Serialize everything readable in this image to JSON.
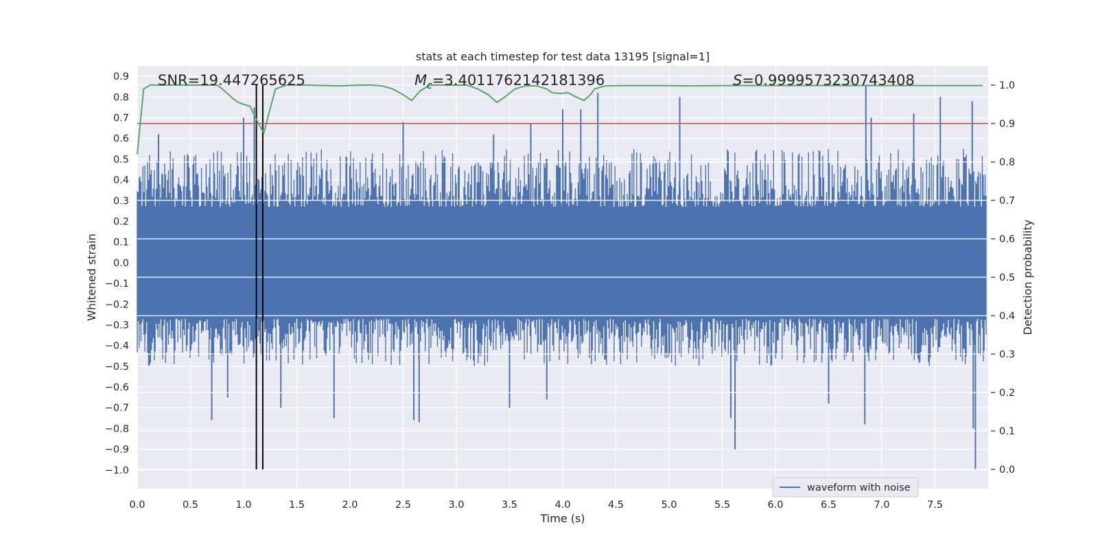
{
  "chart_data": {
    "type": "line",
    "title": "stats at each timestep for test data 13195 [signal=1]",
    "xlabel": "Time (s)",
    "ylabel": "Whitened strain",
    "ylabel_right": "Detection probability",
    "xlim": [
      0.0,
      8.0
    ],
    "ylim": [
      -1.09,
      0.95
    ],
    "ylim_right": [
      -0.05,
      1.05
    ],
    "x_ticks": [
      0.0,
      0.5,
      1.0,
      1.5,
      2.0,
      2.5,
      3.0,
      3.5,
      4.0,
      4.5,
      5.0,
      5.5,
      6.0,
      6.5,
      7.0,
      7.5
    ],
    "x_tick_labels": [
      "0.0",
      "0.5",
      "1.0",
      "1.5",
      "2.0",
      "2.5",
      "3.0",
      "3.5",
      "4.0",
      "4.5",
      "5.0",
      "5.5",
      "6.0",
      "6.5",
      "7.0",
      "7.5"
    ],
    "y_ticks": [
      0.9,
      0.8,
      0.7,
      0.6,
      0.5,
      0.4,
      0.3,
      0.2,
      0.1,
      0.0,
      -0.1,
      -0.2,
      -0.3,
      -0.4,
      -0.5,
      -0.6,
      -0.7,
      -0.8,
      -0.9,
      -1.0
    ],
    "y_tick_labels": [
      "0.9",
      "0.8",
      "0.7",
      "0.6",
      "0.5",
      "0.4",
      "0.3",
      "0.2",
      "0.1",
      "0.0",
      "−0.1",
      "−0.2",
      "−0.3",
      "−0.4",
      "−0.5",
      "−0.6",
      "−0.7",
      "−0.8",
      "−0.9",
      "−1.0"
    ],
    "y_right_ticks": [
      1.0,
      0.9,
      0.8,
      0.7,
      0.6,
      0.5,
      0.4,
      0.3,
      0.2,
      0.1,
      0.0
    ],
    "y_right_tick_labels": [
      "1.0",
      "0.9",
      "0.8",
      "0.7",
      "0.6",
      "0.5",
      "0.4",
      "0.3",
      "0.2",
      "0.1",
      "0.0"
    ],
    "annotations": {
      "snr": "SNR=19.447265625",
      "mc_symbol": "M",
      "mc_subscript": "c",
      "mc_value": "=3.4011762142181396",
      "s_symbol": "S",
      "s_value": "=0.9999573230743408"
    },
    "threshold": {
      "axis": "right",
      "value": 0.9
    },
    "vertical_markers": [
      1.12,
      1.18
    ],
    "legend": {
      "label": "waveform with noise",
      "placement": "lower-right"
    },
    "waveform": {
      "series_name": "waveform with noise",
      "core_band": [
        -0.27,
        0.27
      ],
      "typical_envelope": [
        -0.5,
        0.55
      ],
      "peaks": [
        {
          "x": 0.7,
          "y": -0.76
        },
        {
          "x": 0.85,
          "y": -0.65
        },
        {
          "x": 1.35,
          "y": -0.7
        },
        {
          "x": 1.85,
          "y": -0.75
        },
        {
          "x": 2.6,
          "y": -0.76
        },
        {
          "x": 2.65,
          "y": -0.77
        },
        {
          "x": 3.35,
          "y": 0.62
        },
        {
          "x": 3.7,
          "y": 0.67
        },
        {
          "x": 3.85,
          "y": -0.66
        },
        {
          "x": 4.0,
          "y": 0.74
        },
        {
          "x": 4.17,
          "y": 0.74
        },
        {
          "x": 4.33,
          "y": 0.82
        },
        {
          "x": 5.1,
          "y": 0.8
        },
        {
          "x": 5.62,
          "y": -0.9
        },
        {
          "x": 5.58,
          "y": -0.75
        },
        {
          "x": 6.85,
          "y": 0.86
        },
        {
          "x": 6.84,
          "y": -0.78
        },
        {
          "x": 7.3,
          "y": 0.72
        },
        {
          "x": 7.55,
          "y": 0.8
        },
        {
          "x": 7.85,
          "y": 0.78
        },
        {
          "x": 7.88,
          "y": -1.0
        },
        {
          "x": 7.86,
          "y": -0.8
        },
        {
          "x": 0.2,
          "y": 0.62
        },
        {
          "x": 1.0,
          "y": 0.7
        },
        {
          "x": 1.1,
          "y": 0.75
        },
        {
          "x": 2.5,
          "y": 0.68
        },
        {
          "x": 3.5,
          "y": -0.7
        },
        {
          "x": 6.5,
          "y": -0.68
        },
        {
          "x": 6.9,
          "y": 0.7
        }
      ]
    },
    "detection_probability": {
      "series_name": "Detection probability",
      "x": [
        0.0,
        0.06,
        0.12,
        0.3,
        0.5,
        0.75,
        0.8,
        0.9,
        0.95,
        1.0,
        1.06,
        1.12,
        1.19,
        1.25,
        1.3,
        1.4,
        1.6,
        1.9,
        2.1,
        2.2,
        2.3,
        2.4,
        2.5,
        2.58,
        2.66,
        2.75,
        2.85,
        3.0,
        3.1,
        3.2,
        3.3,
        3.38,
        3.45,
        3.55,
        3.65,
        3.75,
        3.85,
        3.9,
        3.98,
        4.05,
        4.12,
        4.2,
        4.26,
        4.3,
        4.4,
        4.6,
        4.9,
        5.2,
        5.6,
        6.0,
        6.5,
        7.0,
        7.5,
        7.95
      ],
      "y": [
        0.82,
        0.99,
        1.0,
        1.0,
        1.0,
        1.0,
        0.99,
        0.965,
        0.955,
        0.95,
        0.945,
        0.91,
        0.875,
        0.94,
        0.99,
        1.0,
        1.0,
        0.998,
        1.0,
        1.0,
        0.998,
        0.99,
        0.975,
        0.96,
        0.985,
        1.0,
        1.0,
        1.0,
        1.0,
        0.99,
        0.975,
        0.955,
        0.968,
        0.99,
        0.998,
        0.998,
        0.99,
        0.98,
        0.978,
        0.98,
        0.97,
        0.96,
        0.975,
        0.99,
        0.998,
        0.999,
        0.999,
        0.998,
        0.999,
        0.999,
        0.999,
        0.999,
        0.999,
        0.999
      ]
    },
    "colors": {
      "background": "#eaeaf2",
      "grid": "#ffffff",
      "waveform": "#4c72b0",
      "probability": "#55a868",
      "threshold": "#c44e52",
      "markers": "#000000",
      "text": "#262626"
    }
  }
}
